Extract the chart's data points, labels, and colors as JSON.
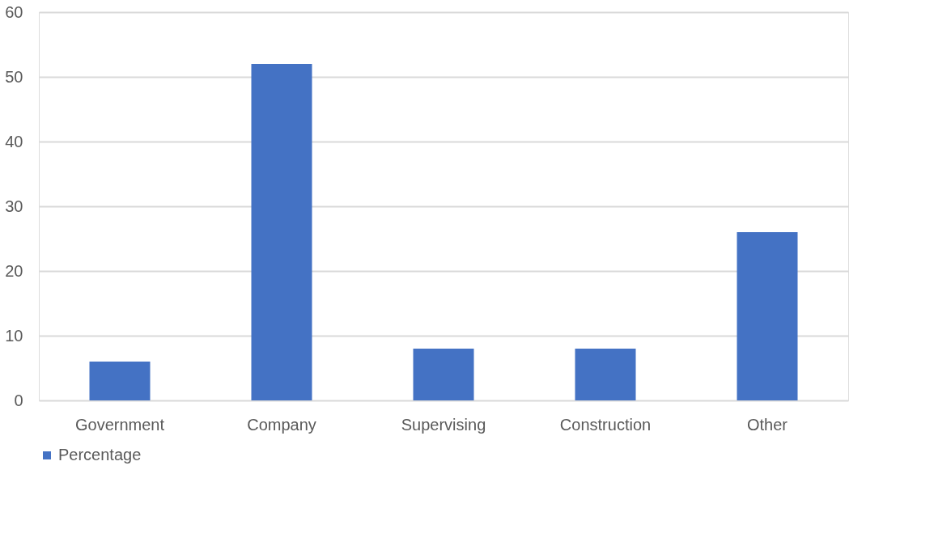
{
  "chart_data": {
    "type": "bar",
    "categories": [
      "Government",
      "Company",
      "Supervising",
      "Construction",
      "Other"
    ],
    "series": [
      {
        "name": "Percentage",
        "color": "#4472c4",
        "values": [
          6,
          52,
          8,
          8,
          26
        ]
      }
    ],
    "ylim": [
      0,
      60
    ],
    "yticks": [
      0,
      10,
      20,
      30,
      40,
      50,
      60
    ],
    "grid": "y",
    "legend": "bottom"
  }
}
